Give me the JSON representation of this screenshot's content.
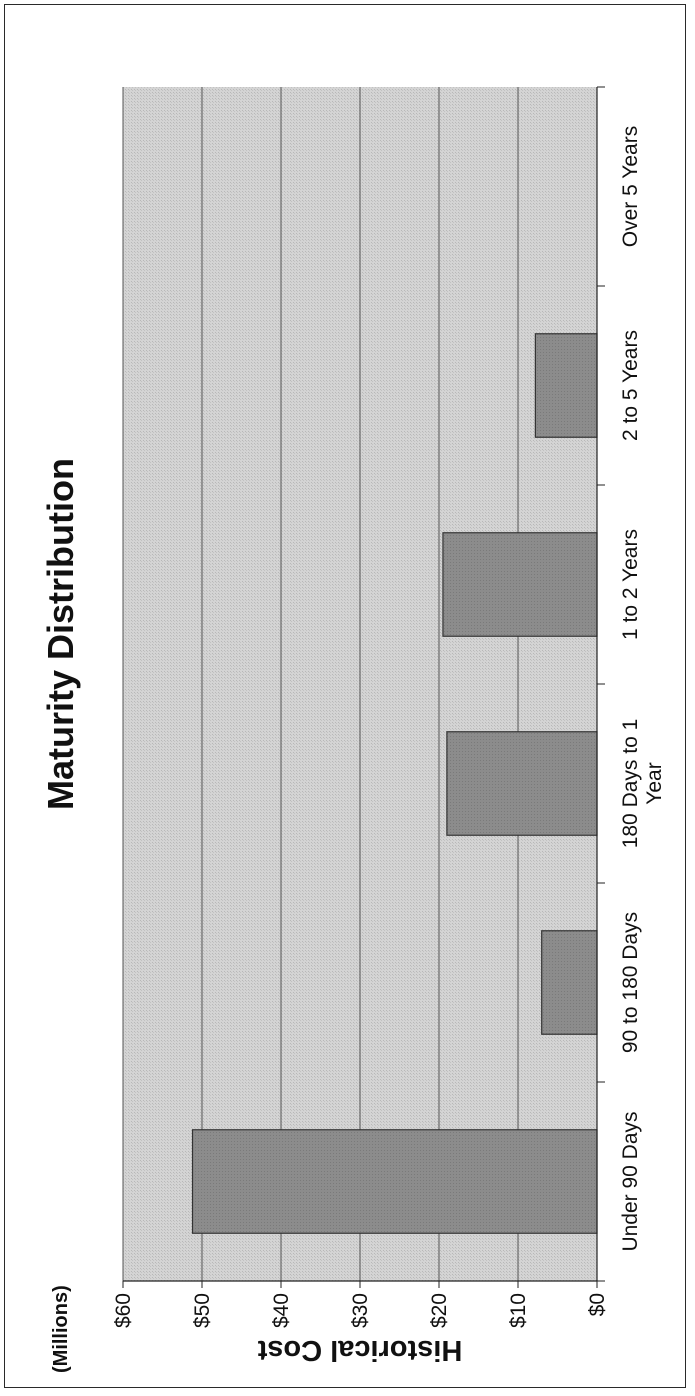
{
  "chart_data": {
    "type": "bar",
    "title": "Maturity Distribution",
    "ylabel": "Historical Cost",
    "yunits": "(Millions)",
    "xlabel": "",
    "categories": [
      "Under 90 Days",
      "90 to 180 Days",
      "180 Days to 1 Year",
      "1 to 2 Years",
      "2 to 5 Years",
      "Over 5 Years"
    ],
    "values": [
      51.2,
      7.0,
      19.0,
      19.5,
      7.8,
      0
    ],
    "ylim": [
      0,
      60
    ],
    "yticks": [
      0,
      10,
      20,
      30,
      40,
      50,
      60
    ],
    "ytick_labels": [
      "$0",
      "$10",
      "$20",
      "$30",
      "$40",
      "$50",
      "$60"
    ],
    "grid": true,
    "colors": {
      "plot_background": "#d4d4d4",
      "bar_fill": "#8c8c8c",
      "bar_stroke": "#333333",
      "gridline": "#555555"
    }
  }
}
